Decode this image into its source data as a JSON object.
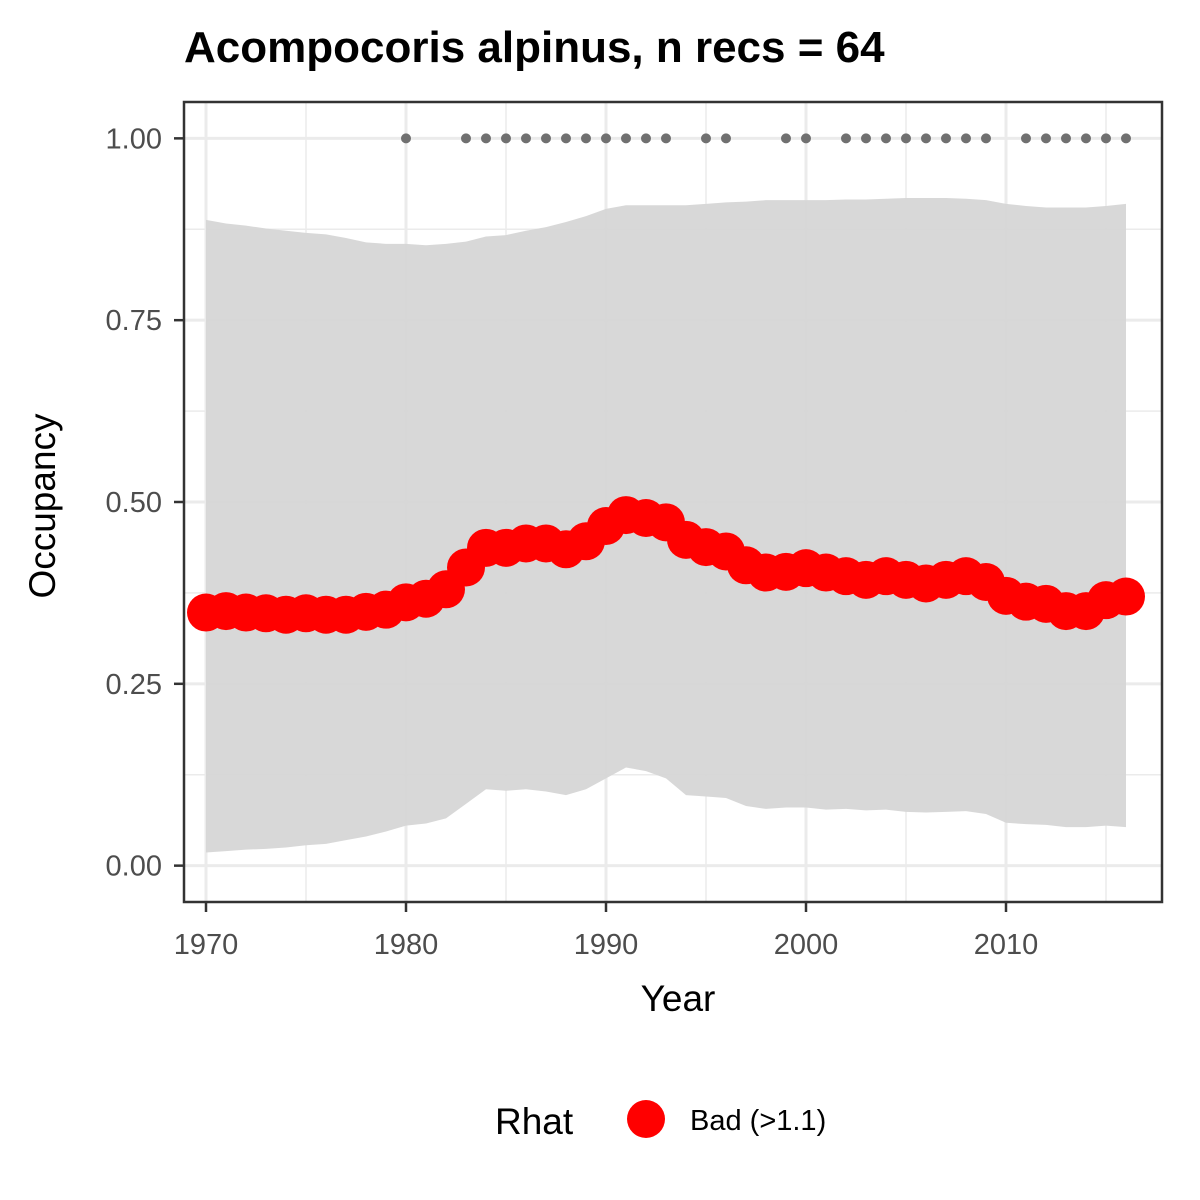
{
  "chart_data": {
    "type": "line",
    "title": "Acompocoris alpinus, n recs = 64",
    "xlabel": "Year",
    "ylabel": "Occupancy",
    "xlim": [
      1968.9,
      2017.8
    ],
    "ylim": [
      -0.05,
      1.05
    ],
    "x_ticks": [
      1970,
      1980,
      1990,
      2000,
      2010
    ],
    "x_tick_labels": [
      "1970",
      "1980",
      "1990",
      "2000",
      "2010"
    ],
    "y_ticks": [
      0,
      0.25,
      0.5,
      0.75,
      1.0
    ],
    "y_tick_labels": [
      "0.00",
      "0.25",
      "0.50",
      "0.75",
      "1.00"
    ],
    "grid": true,
    "legend": {
      "title": "Rhat",
      "position": "bottom",
      "entries": [
        {
          "label": "Bad (>1.1)",
          "color": "#ff0000"
        }
      ]
    },
    "colors": {
      "series": "#ff0000",
      "ribbon": "#d6d6d6",
      "records": "#707070",
      "axis": "#333333"
    },
    "series": [
      {
        "rhat": "Bad (>1.1)",
        "x": [
          1970,
          1971,
          1972,
          1973,
          1974,
          1975,
          1976,
          1977,
          1978,
          1979,
          1980,
          1981,
          1982,
          1983,
          1984,
          1985,
          1986,
          1987,
          1988,
          1989,
          1990,
          1991,
          1992,
          1993,
          1994,
          1995,
          1996,
          1997,
          1998,
          1999,
          2000,
          2001,
          2002,
          2003,
          2004,
          2005,
          2006,
          2007,
          2008,
          2009,
          2010,
          2011,
          2012,
          2013,
          2014,
          2015,
          2016
        ],
        "y": [
          0.348,
          0.35,
          0.348,
          0.347,
          0.345,
          0.347,
          0.345,
          0.345,
          0.349,
          0.352,
          0.362,
          0.367,
          0.38,
          0.41,
          0.437,
          0.437,
          0.443,
          0.443,
          0.435,
          0.446,
          0.467,
          0.482,
          0.478,
          0.472,
          0.448,
          0.438,
          0.432,
          0.413,
          0.403,
          0.404,
          0.409,
          0.403,
          0.398,
          0.393,
          0.398,
          0.393,
          0.388,
          0.393,
          0.398,
          0.39,
          0.371,
          0.363,
          0.36,
          0.35,
          0.35,
          0.365,
          0.37
        ]
      }
    ],
    "interval": {
      "x": [
        1970,
        1971,
        1972,
        1973,
        1974,
        1975,
        1976,
        1977,
        1978,
        1979,
        1980,
        1981,
        1982,
        1983,
        1984,
        1985,
        1986,
        1987,
        1988,
        1989,
        1990,
        1991,
        1992,
        1993,
        1994,
        1995,
        1996,
        1997,
        1998,
        1999,
        2000,
        2001,
        2002,
        2003,
        2004,
        2005,
        2006,
        2007,
        2008,
        2009,
        2010,
        2011,
        2012,
        2013,
        2014,
        2015,
        2016
      ],
      "lower": [
        0.018,
        0.02,
        0.022,
        0.023,
        0.025,
        0.028,
        0.03,
        0.035,
        0.04,
        0.047,
        0.055,
        0.058,
        0.065,
        0.085,
        0.105,
        0.103,
        0.105,
        0.102,
        0.097,
        0.105,
        0.12,
        0.135,
        0.13,
        0.12,
        0.097,
        0.095,
        0.093,
        0.082,
        0.078,
        0.08,
        0.08,
        0.077,
        0.078,
        0.076,
        0.077,
        0.074,
        0.073,
        0.074,
        0.075,
        0.071,
        0.059,
        0.057,
        0.056,
        0.053,
        0.053,
        0.055,
        0.053
      ],
      "upper": [
        0.888,
        0.883,
        0.88,
        0.876,
        0.873,
        0.87,
        0.868,
        0.863,
        0.857,
        0.855,
        0.855,
        0.853,
        0.855,
        0.858,
        0.865,
        0.867,
        0.873,
        0.878,
        0.885,
        0.893,
        0.903,
        0.908,
        0.908,
        0.908,
        0.908,
        0.91,
        0.912,
        0.913,
        0.915,
        0.915,
        0.915,
        0.915,
        0.916,
        0.916,
        0.917,
        0.918,
        0.918,
        0.918,
        0.917,
        0.915,
        0.91,
        0.907,
        0.905,
        0.905,
        0.905,
        0.907,
        0.91
      ]
    },
    "records_years": [
      1980,
      1983,
      1984,
      1985,
      1986,
      1987,
      1988,
      1989,
      1990,
      1991,
      1992,
      1993,
      1995,
      1996,
      1999,
      2000,
      2002,
      2003,
      2004,
      2005,
      2006,
      2007,
      2008,
      2009,
      2011,
      2012,
      2013,
      2014,
      2015,
      2016
    ],
    "records_y": 1.0
  }
}
